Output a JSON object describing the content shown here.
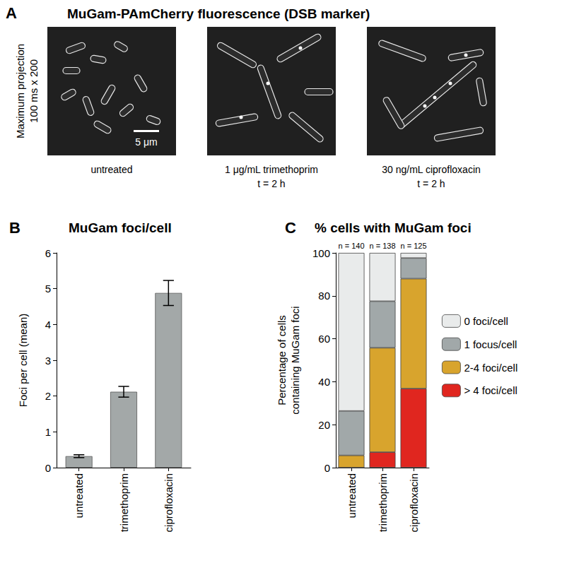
{
  "figure": {
    "panel_a": {
      "label": "A",
      "title": "MuGam-PAmCherry fluorescence (DSB marker)",
      "y_label": [
        "Maximum projection",
        "100 ms x 200"
      ],
      "scale_bar": "5 μm",
      "images": [
        {
          "caption": [
            "untreated"
          ]
        },
        {
          "caption": [
            "1 μg/mL trimethoprim",
            "t = 2 h"
          ]
        },
        {
          "caption": [
            "30 ng/mL ciprofloxacin",
            "t = 2 h"
          ]
        }
      ]
    }
  },
  "chart_data": [
    {
      "label": "B",
      "type": "bar",
      "title": "MuGam foci/cell",
      "categories": [
        "untreated",
        "trimethoprim",
        "ciprofloxacin"
      ],
      "values": [
        0.32,
        2.12,
        4.88
      ],
      "errors": [
        0.04,
        0.15,
        0.35
      ],
      "color": "#a3a8a8",
      "ylabel": "Foci per cell (mean)",
      "ylim": [
        0,
        6
      ],
      "yticks": [
        0,
        1,
        2,
        3,
        4,
        5,
        6
      ],
      "grid": false
    },
    {
      "label": "C",
      "type": "bar",
      "title": "% cells with MuGam foci",
      "categories": [
        "untreated",
        "trimethoprim",
        "ciprofloxacin"
      ],
      "ylabel": [
        "Percentage of cells",
        "containing MuGam foci"
      ],
      "ylim": [
        0,
        100
      ],
      "yticks": [
        0,
        20,
        40,
        60,
        80,
        100
      ],
      "stacked": true,
      "legend": "right",
      "grid": false,
      "annotations": [
        "n = 140",
        "n = 138",
        "n = 125"
      ],
      "series": [
        {
          "name": "0 foci/cell",
          "color": "#e9ebeb",
          "values": [
            73.6,
            22.5,
            2.4
          ]
        },
        {
          "name": "1 focus/cell",
          "color": "#a1a8a9",
          "values": [
            20.7,
            21.7,
            9.6
          ]
        },
        {
          "name": "2-4 foci/cell",
          "color": "#d8a42d",
          "values": [
            5.7,
            48.6,
            51.2
          ]
        },
        {
          "name": "> 4 foci/cell",
          "color": "#e0261f",
          "values": [
            0,
            7.2,
            36.8
          ]
        }
      ]
    }
  ]
}
